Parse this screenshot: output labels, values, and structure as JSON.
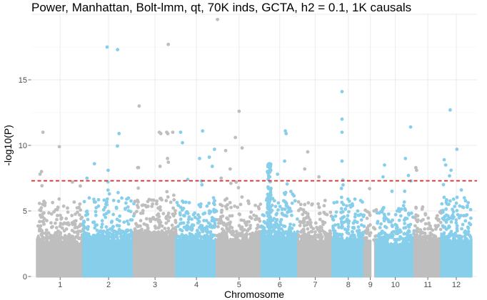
{
  "chart_data": {
    "type": "scatter",
    "title": "Power, Manhattan, Bolt-lmm, qt, 70K inds, GCTA, h2 = 0.1, 1K causals",
    "xlabel": "Chromosome",
    "ylabel": "-log10(P)",
    "ylim": [
      0,
      20
    ],
    "yticks": [
      0,
      5,
      10,
      15
    ],
    "grid": true,
    "legend": "none",
    "threshold": {
      "value": 7.3,
      "style": "dashed",
      "color": "#e8312f"
    },
    "colors": {
      "odd": "#bebebe",
      "even": "#87ceeb"
    },
    "chromosomes": [
      {
        "label": "1",
        "start": 0,
        "end": 12.4,
        "color": "#bebebe",
        "base_max": 2.9,
        "mid_max": 5.5,
        "peaks": [
          [
            0.8,
            7.8
          ],
          [
            1.2,
            8.0
          ],
          [
            1.6,
            11.0
          ],
          [
            6.0,
            9.9
          ],
          [
            9.5,
            7.2
          ],
          [
            11.6,
            6.9
          ]
        ]
      },
      {
        "label": "2",
        "start": 12.4,
        "end": 26.0,
        "color": "#87ceeb",
        "base_max": 3.0,
        "mid_max": 5.8,
        "peaks": [
          [
            13.4,
            7.5
          ],
          [
            15.4,
            8.6
          ],
          [
            18.8,
            17.5
          ],
          [
            21.6,
            17.3
          ],
          [
            22.0,
            10.9
          ],
          [
            19.4,
            6.3
          ],
          [
            24.4,
            5.3
          ]
        ]
      },
      {
        "label": "3",
        "start": 26.0,
        "end": 37.3,
        "color": "#bebebe",
        "base_max": 3.2,
        "mid_max": 5.6,
        "peaks": [
          [
            27.4,
            13.0
          ],
          [
            27.0,
            8.3
          ],
          [
            32.8,
            11.0
          ],
          [
            33.2,
            10.9
          ],
          [
            34.8,
            11.0
          ],
          [
            35.2,
            17.7
          ],
          [
            36.4,
            11.0
          ],
          [
            35.0,
            9.0
          ],
          [
            33.0,
            8.4
          ]
        ]
      },
      {
        "label": "4",
        "start": 37.3,
        "end": 48.2,
        "color": "#87ceeb",
        "base_max": 3.0,
        "mid_max": 5.4,
        "peaks": [
          [
            38.5,
            11.0
          ],
          [
            39.0,
            10.2
          ],
          [
            40.4,
            7.4
          ],
          [
            43.6,
            9.0
          ],
          [
            44.4,
            11.1
          ],
          [
            46.2,
            9.1
          ],
          [
            47.6,
            9.7
          ],
          [
            47.0,
            8.4
          ]
        ]
      },
      {
        "label": "5",
        "start": 48.2,
        "end": 60.2,
        "color": "#bebebe",
        "base_max": 3.1,
        "mid_max": 5.5,
        "peaks": [
          [
            50.6,
            9.6
          ],
          [
            51.8,
            8.2
          ],
          [
            53.2,
            10.6
          ],
          [
            54.2,
            12.6
          ],
          [
            55.0,
            9.8
          ],
          [
            49.4,
            7.5
          ],
          [
            52.0,
            7.1
          ]
        ]
      },
      {
        "label": "6",
        "start": 60.2,
        "end": 70.0,
        "color": "#87ceeb",
        "base_max": 3.3,
        "mid_max": 6.2,
        "peaks": [
          [
            62.2,
            8.6
          ],
          [
            61.8,
            8.0
          ],
          [
            62.4,
            7.6
          ],
          [
            64.5,
            7.8
          ],
          [
            66.6,
            11.1
          ],
          [
            66.8,
            10.9
          ],
          [
            66.4,
            8.8
          ],
          [
            67.8,
            5.2
          ]
        ],
        "tower": {
          "x": 62.3,
          "min": 3.0,
          "max": 8.6
        }
      },
      {
        "label": "7",
        "start": 70.0,
        "end": 79.2,
        "color": "#bebebe",
        "base_max": 3.0,
        "mid_max": 5.5,
        "peaks": [
          [
            71.8,
            8.2
          ],
          [
            72.6,
            9.5
          ],
          [
            75.6,
            7.6
          ],
          [
            77.0,
            5.4
          ]
        ]
      },
      {
        "label": "8",
        "start": 79.2,
        "end": 87.8,
        "color": "#87ceeb",
        "base_max": 3.1,
        "mid_max": 5.6,
        "peaks": [
          [
            81.8,
            14.1
          ],
          [
            81.8,
            12.0
          ],
          [
            81.8,
            11.0
          ],
          [
            81.8,
            8.8
          ],
          [
            83.4,
            5.9
          ]
        ]
      },
      {
        "label": "9",
        "start": 87.8,
        "end": 91.0,
        "color": "#bebebe",
        "base_max": 2.6,
        "mid_max": 5.0,
        "gap": [
          0.5,
          0.9
        ],
        "peaks": [
          [
            89.2,
            6.7
          ],
          [
            90.4,
            5.0
          ]
        ]
      },
      {
        "label": "10",
        "start": 91.0,
        "end": 101.2,
        "color": "#87ceeb",
        "base_max": 2.8,
        "mid_max": 5.4,
        "peaks": [
          [
            93.2,
            8.5
          ],
          [
            92.8,
            7.6
          ],
          [
            95.2,
            6.5
          ],
          [
            98.8,
            9.0
          ],
          [
            99.6,
            7.7
          ],
          [
            100.2,
            11.4
          ],
          [
            98.6,
            6.5
          ]
        ]
      },
      {
        "label": "11",
        "start": 101.2,
        "end": 108.4,
        "color": "#bebebe",
        "base_max": 2.9,
        "mid_max": 5.0,
        "peaks": [
          [
            101.6,
            8.3
          ],
          [
            101.8,
            8.1
          ]
        ]
      },
      {
        "label": "12",
        "start": 108.4,
        "end": 116.5,
        "color": "#87ceeb",
        "base_max": 3.0,
        "mid_max": 5.6,
        "peaks": [
          [
            109.2,
            8.9
          ],
          [
            109.6,
            8.5
          ],
          [
            110.8,
            12.7
          ],
          [
            112.6,
            9.7
          ],
          [
            109.0,
            7.0
          ],
          [
            113.8,
            6.6
          ],
          [
            114.6,
            6.0
          ]
        ]
      }
    ]
  }
}
